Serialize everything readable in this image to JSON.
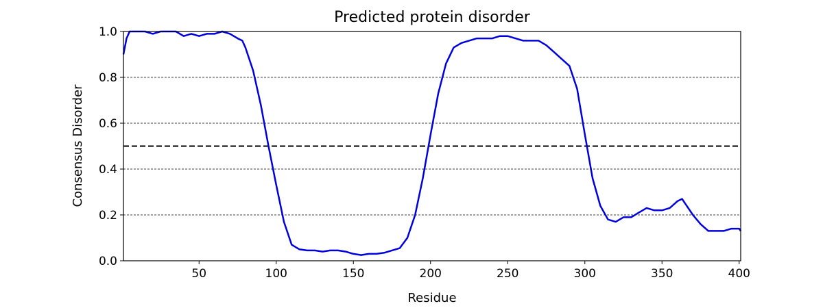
{
  "chart_data": {
    "type": "line",
    "title": "Predicted protein disorder",
    "xlabel": "Residue",
    "ylabel": "Consensus Disorder",
    "xlim": [
      1,
      401
    ],
    "ylim": [
      0,
      1
    ],
    "x_ticks": [
      50,
      100,
      150,
      200,
      250,
      300,
      350,
      400
    ],
    "y_ticks": [
      0.0,
      0.2,
      0.4,
      0.6,
      0.8,
      1.0
    ],
    "y_tick_labels": [
      "0.0",
      "0.2",
      "0.4",
      "0.6",
      "0.8",
      "1.0"
    ],
    "grid": "horizontal dashed at y ticks",
    "threshold": 0.5,
    "series": [
      {
        "color": "#0000dd",
        "x": [
          1,
          3,
          5,
          10,
          15,
          20,
          25,
          30,
          35,
          40,
          45,
          50,
          55,
          60,
          65,
          70,
          75,
          78,
          80,
          85,
          90,
          95,
          100,
          105,
          110,
          115,
          120,
          125,
          130,
          135,
          140,
          145,
          150,
          155,
          160,
          165,
          170,
          175,
          180,
          185,
          190,
          195,
          200,
          205,
          210,
          215,
          220,
          225,
          230,
          235,
          240,
          245,
          250,
          255,
          260,
          265,
          270,
          275,
          280,
          285,
          290,
          295,
          300,
          305,
          310,
          315,
          320,
          325,
          330,
          335,
          340,
          345,
          350,
          355,
          360,
          363,
          365,
          370,
          375,
          380,
          385,
          390,
          395,
          400,
          401
        ],
        "y": [
          0.9,
          0.97,
          1.0,
          1.0,
          1.0,
          0.99,
          1.0,
          1.0,
          1.0,
          0.98,
          0.99,
          0.98,
          0.99,
          0.99,
          1.0,
          0.99,
          0.97,
          0.96,
          0.93,
          0.83,
          0.68,
          0.5,
          0.33,
          0.17,
          0.07,
          0.05,
          0.045,
          0.045,
          0.04,
          0.045,
          0.045,
          0.04,
          0.03,
          0.025,
          0.03,
          0.03,
          0.035,
          0.045,
          0.055,
          0.1,
          0.2,
          0.36,
          0.55,
          0.73,
          0.86,
          0.93,
          0.95,
          0.96,
          0.97,
          0.97,
          0.97,
          0.98,
          0.98,
          0.97,
          0.96,
          0.96,
          0.96,
          0.94,
          0.91,
          0.88,
          0.85,
          0.75,
          0.55,
          0.36,
          0.24,
          0.18,
          0.17,
          0.19,
          0.19,
          0.21,
          0.23,
          0.22,
          0.22,
          0.23,
          0.26,
          0.27,
          0.25,
          0.2,
          0.16,
          0.13,
          0.13,
          0.13,
          0.14,
          0.14,
          0.13
        ]
      }
    ]
  }
}
